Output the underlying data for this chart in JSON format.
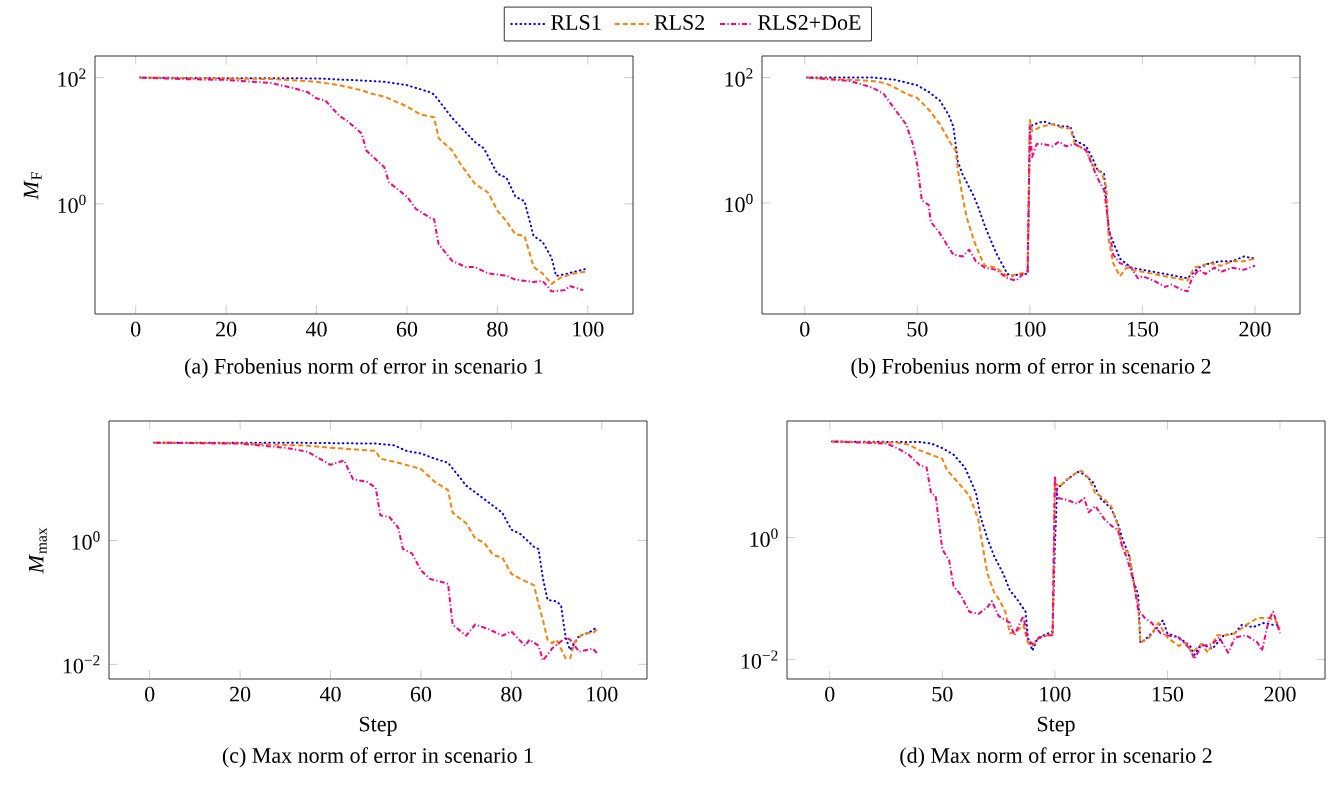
{
  "chart_data": [
    {
      "type": "line",
      "title": "(a) Frobenius norm of error in scenario 1",
      "ylabel": "*M*$_{F}$",
      "log": "y",
      "legend": "top",
      "xlim": [
        -9,
        110
      ],
      "ylim": [
        0.018,
        220
      ],
      "xticks": [
        0,
        20,
        40,
        60,
        80,
        100
      ],
      "yticks": [
        {
          "value": 1,
          "label": "10$^{0}$"
        },
        {
          "value": 100,
          "label": "10$^{2}$"
        }
      ],
      "series": [
        {
          "name": "RLS1",
          "color": "#0000ff",
          "line_style": "dotted",
          "x": [
            1,
            10,
            20,
            30,
            40,
            50,
            55,
            60,
            65,
            66,
            70,
            75,
            77,
            80,
            82,
            84,
            86,
            88,
            90,
            92,
            93,
            95,
            100
          ],
          "values": [
            100,
            99,
            98,
            98,
            97,
            90,
            86,
            76,
            59,
            54,
            23,
            9.6,
            7.6,
            3.0,
            2.6,
            1.3,
            1.1,
            0.31,
            0.25,
            0.14,
            0.072,
            0.077,
            0.095
          ]
        },
        {
          "name": "RLS2",
          "color": "#ff8000",
          "line_style": "dashed",
          "x": [
            1,
            20,
            30,
            40,
            45,
            50,
            52,
            55,
            60,
            63,
            66,
            67,
            70,
            72,
            75,
            78,
            80,
            82,
            84,
            86,
            87,
            88,
            90,
            92,
            94,
            97,
            100
          ],
          "values": [
            100,
            97,
            95,
            86,
            76,
            63,
            56,
            50,
            35,
            26,
            23.6,
            11,
            7,
            4.1,
            2.1,
            1.5,
            0.78,
            0.53,
            0.33,
            0.31,
            0.18,
            0.1,
            0.079,
            0.054,
            0.068,
            0.079,
            0.085
          ]
        },
        {
          "name": "RLS2+DoE",
          "color": "#ff0080",
          "line_style": "dashdot",
          "x": [
            1,
            10,
            20,
            30,
            35,
            38,
            40,
            42,
            45,
            47,
            50,
            51,
            55,
            56,
            60,
            62,
            65,
            66,
            67,
            70,
            73,
            75,
            78,
            82,
            84,
            88,
            90,
            92,
            95,
            96,
            99
          ],
          "values": [
            100,
            95,
            92,
            82,
            68,
            59,
            47,
            43,
            25,
            20,
            13,
            7,
            3.8,
            2.2,
            1.3,
            0.83,
            0.61,
            0.57,
            0.23,
            0.125,
            0.1,
            0.1,
            0.079,
            0.073,
            0.063,
            0.058,
            0.06,
            0.041,
            0.043,
            0.05,
            0.043
          ]
        }
      ]
    },
    {
      "type": "line",
      "title": "(b) Frobenius norm of error in scenario 2",
      "log": "y",
      "xlim": [
        -19,
        220
      ],
      "ylim": [
        0.017,
        220
      ],
      "xticks": [
        0,
        50,
        100,
        150,
        200
      ],
      "yticks": [
        {
          "value": 1,
          "label": "10$^{0}$"
        },
        {
          "value": 100,
          "label": "10$^{2}$"
        }
      ],
      "series": [
        {
          "color": "#0000ff",
          "line_style": "dotted",
          "x": [
            1,
            30,
            40,
            50,
            55,
            60,
            64,
            66,
            68,
            70,
            75,
            77,
            80,
            85,
            90,
            93,
            95,
            99,
            100,
            102,
            106,
            110,
            115,
            118,
            120,
            125,
            128,
            130,
            133,
            135,
            137,
            140,
            145,
            150,
            160,
            170,
            175,
            180,
            185,
            190,
            195,
            200
          ],
          "values": [
            100,
            100,
            92,
            75,
            59,
            43,
            25,
            16.5,
            4.6,
            2.9,
            1.3,
            0.87,
            0.43,
            0.16,
            0.074,
            0.068,
            0.074,
            0.074,
            16.5,
            18,
            20,
            18,
            16.5,
            16.5,
            10,
            8,
            5,
            3.4,
            2.9,
            0.36,
            0.24,
            0.13,
            0.093,
            0.086,
            0.074,
            0.063,
            0.093,
            0.11,
            0.118,
            0.118,
            0.14,
            0.13
          ]
        },
        {
          "color": "#ff8000",
          "line_style": "dashed",
          "x": [
            1,
            20,
            30,
            36,
            40,
            45,
            50,
            55,
            60,
            65,
            67,
            68,
            70,
            72,
            75,
            78,
            80,
            85,
            90,
            95,
            99,
            100,
            101,
            105,
            110,
            115,
            118,
            120,
            125,
            128,
            132,
            134,
            135,
            137,
            140,
            143,
            145,
            150,
            155,
            160,
            165,
            170,
            173,
            180,
            185,
            190,
            195,
            200
          ],
          "values": [
            100,
            92,
            88,
            81,
            69,
            55,
            47,
            31,
            18,
            8.7,
            6.9,
            3.4,
            1.3,
            0.58,
            0.26,
            0.14,
            0.1,
            0.093,
            0.068,
            0.074,
            0.08,
            21,
            14,
            16.5,
            18,
            15.5,
            15.5,
            8.7,
            6.9,
            4,
            2.9,
            1.8,
            0.26,
            0.11,
            0.068,
            0.093,
            0.086,
            0.08,
            0.074,
            0.068,
            0.063,
            0.058,
            0.093,
            0.11,
            0.1,
            0.118,
            0.118,
            0.13
          ]
        },
        {
          "color": "#ff0080",
          "line_style": "dashdot",
          "x": [
            1,
            20,
            30,
            35,
            40,
            45,
            48,
            50,
            52,
            55,
            56,
            60,
            63,
            66,
            70,
            73,
            76,
            80,
            85,
            90,
            94,
            97,
            99,
            100,
            101,
            103,
            106,
            110,
            113,
            116,
            120,
            125,
            130,
            133,
            135,
            137,
            140,
            145,
            148,
            150,
            155,
            160,
            163,
            167,
            170,
            172,
            175,
            178,
            182,
            185,
            190,
            195,
            200
          ],
          "values": [
            100,
            88,
            69,
            55,
            31,
            18,
            8.7,
            4,
            1.1,
            0.93,
            0.5,
            0.33,
            0.22,
            0.15,
            0.14,
            0.18,
            0.118,
            0.093,
            0.086,
            0.063,
            0.058,
            0.074,
            0.074,
            16.5,
            5.4,
            8.7,
            8.7,
            8,
            9.5,
            8,
            8.7,
            6.9,
            2.5,
            1.6,
            0.43,
            0.15,
            0.11,
            0.093,
            0.063,
            0.068,
            0.058,
            0.046,
            0.05,
            0.042,
            0.039,
            0.063,
            0.086,
            0.074,
            0.093,
            0.08,
            0.093,
            0.086,
            0.1
          ]
        }
      ]
    },
    {
      "type": "line",
      "title": "(c) Max norm of error in scenario 1",
      "xlabel": "Step",
      "ylabel": "*M*$_{max}$",
      "log": "y",
      "xlim": [
        -9,
        110
      ],
      "ylim": [
        0.0058,
        85
      ],
      "xticks": [
        0,
        20,
        40,
        60,
        80,
        100
      ],
      "yticks": [
        {
          "value": 0.01,
          "label": "10$^{−2}$"
        },
        {
          "value": 1,
          "label": "10$^{0}$"
        }
      ],
      "series": [
        {
          "color": "#0000ff",
          "line_style": "dotted",
          "x": [
            1,
            30,
            50,
            54,
            57,
            60,
            63,
            66,
            70,
            75,
            78,
            80,
            82,
            85,
            86,
            87,
            88,
            90,
            91,
            92,
            93,
            95,
            97,
            99
          ],
          "values": [
            38,
            38,
            36.7,
            34.5,
            27.6,
            25.5,
            21,
            18,
            7.7,
            4.1,
            2.8,
            1.5,
            1.27,
            0.79,
            0.73,
            0.24,
            0.11,
            0.104,
            0.089,
            0.027,
            0.017,
            0.029,
            0.032,
            0.04
          ]
        },
        {
          "color": "#ff8000",
          "line_style": "dashed",
          "x": [
            1,
            20,
            35,
            40,
            50,
            51,
            55,
            60,
            63,
            66,
            67,
            70,
            72,
            74,
            76,
            78,
            80,
            82,
            85,
            86,
            87,
            88,
            89,
            90,
            92,
            93,
            94,
            96,
            98,
            99
          ],
          "values": [
            38,
            37,
            34,
            31.5,
            28,
            21,
            18,
            14.3,
            8.9,
            6.5,
            2.8,
            1.9,
            1.08,
            0.92,
            0.58,
            0.53,
            0.29,
            0.24,
            0.19,
            0.095,
            0.051,
            0.025,
            0.022,
            0.025,
            0.0125,
            0.0125,
            0.023,
            0.032,
            0.032,
            0.037
          ]
        },
        {
          "color": "#ff0080",
          "line_style": "dashdot",
          "x": [
            1,
            20,
            30,
            35,
            40,
            43,
            45,
            48,
            50,
            51,
            53,
            55,
            56,
            58,
            60,
            62,
            65,
            66,
            67,
            70,
            72,
            75,
            78,
            80,
            83,
            84,
            86,
            87,
            89,
            92,
            93,
            95,
            98,
            99
          ],
          "values": [
            38,
            36.7,
            31.5,
            27,
            16.7,
            19.6,
            9.7,
            8.9,
            7.1,
            2.56,
            2.4,
            1.6,
            0.73,
            0.62,
            0.33,
            0.24,
            0.21,
            0.2,
            0.044,
            0.029,
            0.044,
            0.037,
            0.029,
            0.034,
            0.02,
            0.025,
            0.02,
            0.0115,
            0.018,
            0.027,
            0.025,
            0.016,
            0.018,
            0.015
          ]
        }
      ]
    },
    {
      "type": "line",
      "title": "(d) Max norm of error in scenario 2",
      "xlabel": "Step",
      "log": "y",
      "xlim": [
        -19,
        220
      ],
      "ylim": [
        0.0048,
        82
      ],
      "xticks": [
        0,
        50,
        100,
        150,
        200
      ],
      "yticks": [
        {
          "value": 0.01,
          "label": "10$^{−2}$"
        },
        {
          "value": 1,
          "label": "10$^{0}$"
        }
      ],
      "series": [
        {
          "color": "#0000ff",
          "line_style": "dotted",
          "x": [
            1,
            40,
            45,
            50,
            55,
            60,
            63,
            65,
            67,
            70,
            73,
            77,
            80,
            83,
            87,
            88,
            90,
            92,
            95,
            99,
            100,
            101,
            105,
            110,
            113,
            117,
            120,
            125,
            128,
            130,
            133,
            135,
            137,
            138,
            140,
            145,
            148,
            150,
            155,
            160,
            162,
            165,
            170,
            175,
            180,
            183,
            188,
            193,
            197,
            200
          ],
          "values": [
            37.7,
            37,
            35,
            29.5,
            23,
            14.2,
            8,
            5.3,
            2.2,
            0.97,
            0.5,
            0.26,
            0.137,
            0.1,
            0.061,
            0.023,
            0.014,
            0.021,
            0.025,
            0.029,
            0.7,
            6.3,
            8.7,
            12,
            11,
            8,
            4.5,
            3,
            1.7,
            0.97,
            0.5,
            0.19,
            0.117,
            0.019,
            0.021,
            0.032,
            0.044,
            0.027,
            0.023,
            0.017,
            0.012,
            0.018,
            0.015,
            0.025,
            0.027,
            0.037,
            0.034,
            0.04,
            0.037,
            0.037
          ]
        },
        {
          "color": "#ff8000",
          "line_style": "dashed",
          "x": [
            1,
            30,
            35,
            40,
            50,
            52,
            57,
            62,
            66,
            67,
            70,
            73,
            75,
            78,
            80,
            83,
            86,
            88,
            90,
            93,
            97,
            99,
            100,
            102,
            105,
            110,
            112,
            115,
            118,
            120,
            125,
            128,
            130,
            133,
            135,
            137,
            138,
            142,
            146,
            150,
            155,
            158,
            161,
            165,
            168,
            172,
            176,
            180,
            185,
            190,
            195,
            198,
            200
          ],
          "values": [
            37.7,
            36,
            33.6,
            27,
            19.6,
            13,
            8,
            4.9,
            2.0,
            1.14,
            0.26,
            0.127,
            0.1,
            0.061,
            0.027,
            0.029,
            0.037,
            0.019,
            0.0167,
            0.023,
            0.025,
            0.027,
            8,
            6.8,
            8.7,
            12,
            12.4,
            9.5,
            5.3,
            4.9,
            3.3,
            1.58,
            0.7,
            0.55,
            0.19,
            0.072,
            0.019,
            0.023,
            0.04,
            0.023,
            0.0167,
            0.019,
            0.013,
            0.018,
            0.013,
            0.025,
            0.025,
            0.027,
            0.037,
            0.048,
            0.048,
            0.044,
            0.032
          ]
        },
        {
          "color": "#ff0080",
          "line_style": "dashdot",
          "x": [
            1,
            25,
            30,
            35,
            40,
            43,
            45,
            47,
            50,
            53,
            55,
            58,
            62,
            66,
            70,
            72,
            75,
            80,
            82,
            86,
            88,
            90,
            93,
            97,
            99,
            100,
            101,
            105,
            110,
            113,
            115,
            118,
            122,
            125,
            128,
            130,
            132,
            135,
            137,
            140,
            143,
            147,
            150,
            155,
            160,
            162,
            165,
            170,
            173,
            177,
            180,
            185,
            190,
            192,
            195,
            197,
            200
          ],
          "values": [
            37.7,
            35,
            29.5,
            23,
            15.4,
            14.2,
            5.3,
            4.9,
            0.64,
            0.43,
            0.16,
            0.117,
            0.061,
            0.056,
            0.072,
            0.091,
            0.052,
            0.04,
            0.025,
            0.052,
            0.021,
            0.018,
            0.023,
            0.025,
            0.025,
            10.3,
            4.5,
            4.2,
            3.6,
            4.5,
            2.6,
            3.3,
            2.0,
            1.58,
            1.34,
            0.7,
            0.47,
            0.19,
            0.066,
            0.048,
            0.04,
            0.027,
            0.025,
            0.023,
            0.015,
            0.0102,
            0.0167,
            0.018,
            0.023,
            0.013,
            0.023,
            0.025,
            0.019,
            0.014,
            0.044,
            0.061,
            0.027
          ]
        }
      ]
    }
  ]
}
